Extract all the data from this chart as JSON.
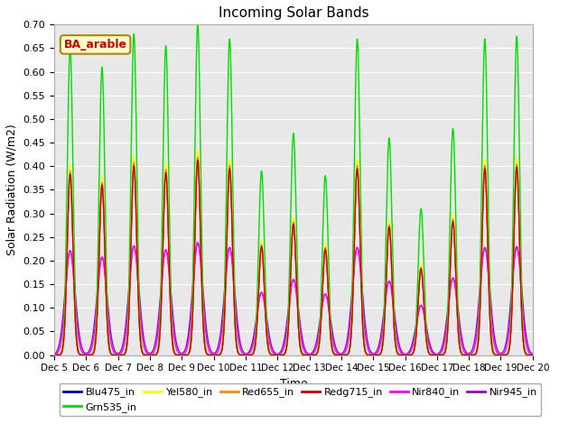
{
  "title": "Incoming Solar Bands",
  "xlabel": "Time",
  "ylabel": "Solar Radiation (W/m2)",
  "annotation": "BA_arable",
  "ylim": [
    0,
    0.7
  ],
  "yticks": [
    0.0,
    0.05,
    0.1,
    0.15,
    0.2,
    0.25,
    0.3,
    0.35,
    0.4,
    0.45,
    0.5,
    0.55,
    0.6,
    0.65,
    0.7
  ],
  "bg_color": "#e8e8e8",
  "series": [
    {
      "name": "Blu475_in",
      "color": "#0000bb",
      "lw": 1.0,
      "sigma": 0.09,
      "scale": 0.6
    },
    {
      "name": "Grn535_in",
      "color": "#00dd00",
      "lw": 1.0,
      "sigma": 0.09,
      "scale": 1.0
    },
    {
      "name": "Yel580_in",
      "color": "#ffff00",
      "lw": 1.0,
      "sigma": 0.09,
      "scale": 0.62
    },
    {
      "name": "Red655_in",
      "color": "#ff8800",
      "lw": 1.0,
      "sigma": 0.09,
      "scale": 0.6
    },
    {
      "name": "Redg715_in",
      "color": "#cc0000",
      "lw": 1.0,
      "sigma": 0.09,
      "scale": 0.59
    },
    {
      "name": "Nir840_in",
      "color": "#ff00ff",
      "lw": 1.0,
      "sigma": 0.14,
      "scale": 0.34
    },
    {
      "name": "Nir945_in",
      "color": "#9900cc",
      "lw": 1.0,
      "sigma": 0.16,
      "scale": 0.34
    }
  ],
  "day_peaks_grn": [
    0.65,
    0.61,
    0.68,
    0.655,
    0.7,
    0.67,
    0.39,
    0.47,
    0.38,
    0.67,
    0.46,
    0.31,
    0.48,
    0.67,
    0.675
  ],
  "xtick_labels": [
    "Dec 5",
    "Dec 6",
    "Dec 7",
    "Dec 8",
    "Dec 9",
    "Dec 10",
    "Dec 11",
    "Dec 12",
    "Dec 13",
    "Dec 14",
    "Dec 15",
    "Dec 16",
    "Dec 17",
    "Dec 18",
    "Dec 19",
    "Dec 20"
  ],
  "annotation_bbox": {
    "facecolor": "#ffffcc",
    "edgecolor": "#aa8800",
    "boxstyle": "round,pad=0.3"
  },
  "legend_order": [
    "Blu475_in",
    "Grn535_in",
    "Yel580_in",
    "Red655_in",
    "Redg715_in",
    "Nir840_in",
    "Nir945_in"
  ]
}
